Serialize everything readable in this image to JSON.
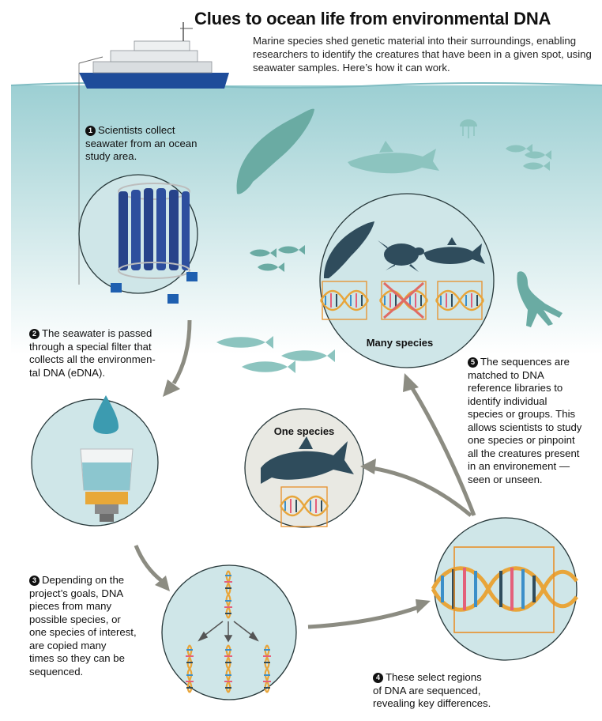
{
  "title": "Clues to ocean life from environmental DNA",
  "intro": "Marine species shed genetic material into their surroundings, enabling researchers to identify the creatures that have been in a given spot, using seawater samples. Here’s how it can work.",
  "steps": [
    {
      "num": "1",
      "lines": [
        "Scientists collect",
        "seawater from an ocean",
        "study area."
      ]
    },
    {
      "num": "2",
      "lines": [
        "The seawater is passed",
        "through a special filter that",
        "collects all the environmen-",
        "tal DNA (eDNA)."
      ]
    },
    {
      "num": "3",
      "lines": [
        "Depending on the",
        "project’s goals, DNA",
        "pieces from many",
        "possible species, or",
        "one species of interest,",
        "are copied many",
        "times so they can be",
        "sequenced."
      ]
    },
    {
      "num": "4",
      "lines": [
        "These select regions",
        "of DNA are sequenced,",
        "revealing key differences."
      ]
    },
    {
      "num": "5",
      "lines": [
        "The sequences are",
        "matched to DNA",
        "reference libraries to",
        "identify individual",
        "species or groups. This",
        "allows scientists to study",
        "one species or pinpoint",
        "all the creatures present",
        "in an environement —",
        "seen or unseen."
      ]
    }
  ],
  "labels": {
    "many_species": "Many species",
    "one_species": "One species"
  },
  "colors": {
    "ocean_top": "#9ccfd3",
    "ocean_bottom": "#ffffff",
    "circle_fill": "#cfe6e8",
    "circle_stroke": "#27383a",
    "animal_dark": "#2f4c5c",
    "animal_light": "#6aaba3",
    "arrow_gray": "#8c8c82",
    "dna_gold": "#e8a53a",
    "box_orange": "#e8902a",
    "cross_red": "#e06b64",
    "ship_blue": "#1e4c9a"
  },
  "icons": [
    "research-ship-icon",
    "whale-icon",
    "shark-icon",
    "jellyfish-icon",
    "fish-school-icon",
    "squid-icon",
    "sea-turtle-icon",
    "rosette-sampler-icon",
    "water-drop-icon",
    "filter-icon",
    "dna-helix-icon",
    "red-x-icon"
  ]
}
